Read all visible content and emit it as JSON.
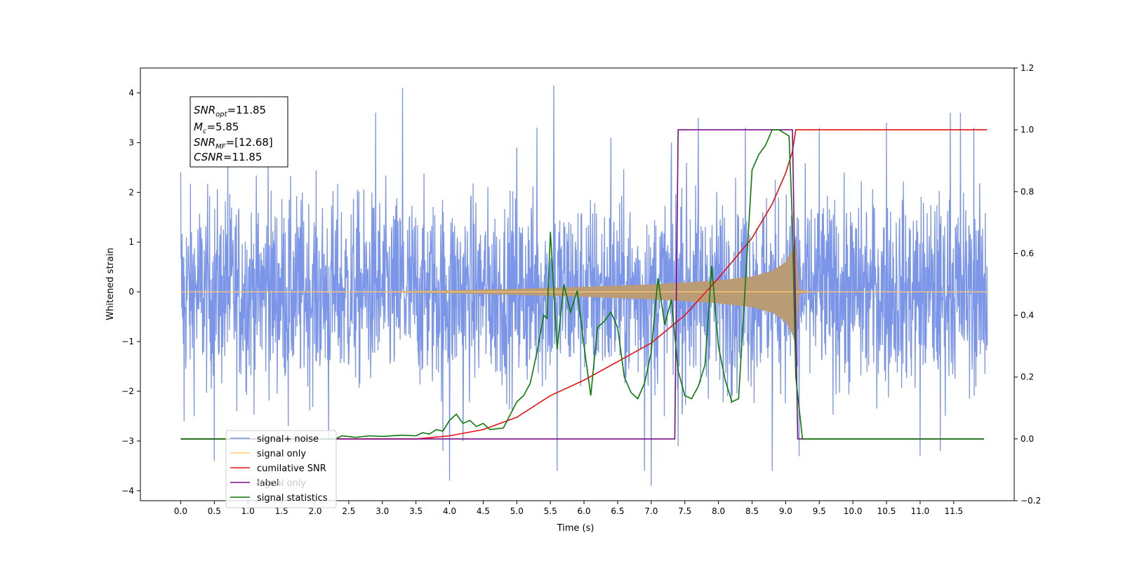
{
  "chart_data": {
    "type": "line",
    "xlabel": "Time (s)",
    "ylabel": "Whitened strain",
    "xlim": [
      -0.6,
      12.4
    ],
    "ylim": [
      -4.2,
      4.5
    ],
    "y2lim": [
      -0.2,
      1.2
    ],
    "x_ticks": [
      "0.0",
      "0.5",
      "1.0",
      "1.5",
      "2.0",
      "2.5",
      "3.0",
      "3.5",
      "4.0",
      "4.5",
      "5.0",
      "5.5",
      "6.0",
      "6.5",
      "7.0",
      "7.5",
      "8.0",
      "8.5",
      "9.0",
      "9.5",
      "10.0",
      "10.5",
      "11.0",
      "11.5"
    ],
    "y_ticks": [
      "4",
      "3",
      "2",
      "1",
      "0",
      "−1",
      "−2",
      "−3",
      "−4"
    ],
    "y2_ticks": [
      "1.2",
      "1.0",
      "0.8",
      "0.6",
      "0.4",
      "0.2",
      "0.0",
      "−0.2"
    ],
    "annotation": {
      "line1_main": "SNR",
      "line1_sub": "opt",
      "line1_value": "=11.85",
      "line2_main": "M",
      "line2_sub": "c",
      "line2_value": "=5.85",
      "line3_main": "SNR",
      "line3_sub": "MF",
      "line3_value": "=[12.68]",
      "line4_main": "CSNR",
      "line4_value": "=11.85"
    },
    "legend_position": "lower-left",
    "legend": [
      {
        "label": "signal+ noise",
        "color": "#7b95e8"
      },
      {
        "label": "signal only",
        "color": "#ffc870"
      },
      {
        "label": "cumilative SNR",
        "color": "#e81010"
      },
      {
        "label": "label",
        "color": "#7a0e8a"
      },
      {
        "label": "signal statistics",
        "color": "#0a7a0a"
      }
    ],
    "hidden_legend_text": "signal only",
    "series": [
      {
        "name": "signal+ noise",
        "axis": "left",
        "color": "#7b95e8",
        "description": "whitened noise band, mostly between -2.5 and 2.5 with spikes to about +/-4",
        "x_range": [
          0.0,
          12.0
        ],
        "noise_amplitude": 2.6,
        "spikes": [
          [
            0.0,
            2.4
          ],
          [
            0.05,
            -2.6
          ],
          [
            0.5,
            -3.4
          ],
          [
            0.7,
            2.9
          ],
          [
            1.3,
            3.0
          ],
          [
            1.6,
            -2.7
          ],
          [
            2.2,
            -3.0
          ],
          [
            2.9,
            3.6
          ],
          [
            3.3,
            4.1
          ],
          [
            3.9,
            -3.2
          ],
          [
            4.0,
            -3.8
          ],
          [
            4.2,
            -3.0
          ],
          [
            5.0,
            2.9
          ],
          [
            5.3,
            3.3
          ],
          [
            5.55,
            4.15
          ],
          [
            5.6,
            -3.6
          ],
          [
            6.4,
            3.1
          ],
          [
            6.9,
            -3.6
          ],
          [
            7.0,
            -3.9
          ],
          [
            7.3,
            3.0
          ],
          [
            7.4,
            -3.1
          ],
          [
            7.7,
            3.5
          ],
          [
            8.4,
            3.3
          ],
          [
            8.8,
            -3.6
          ],
          [
            9.2,
            -3.3
          ],
          [
            9.5,
            3.3
          ],
          [
            10.5,
            3.4
          ],
          [
            11.0,
            -3.3
          ],
          [
            11.3,
            -3.2
          ],
          [
            11.45,
            3.6
          ],
          [
            11.6,
            3.6
          ],
          [
            11.8,
            3.3
          ]
        ]
      },
      {
        "name": "signal only",
        "axis": "left",
        "color": "#ffc870",
        "description": "chirp envelope growing toward merger near 9.15 s",
        "envelope": [
          [
            0.0,
            0.0
          ],
          [
            3.0,
            0.01
          ],
          [
            4.0,
            0.03
          ],
          [
            5.0,
            0.06
          ],
          [
            6.0,
            0.1
          ],
          [
            7.0,
            0.15
          ],
          [
            8.0,
            0.23
          ],
          [
            8.5,
            0.31
          ],
          [
            8.8,
            0.42
          ],
          [
            9.0,
            0.6
          ],
          [
            9.1,
            0.85
          ],
          [
            9.15,
            1.1
          ],
          [
            9.2,
            0.05
          ],
          [
            9.4,
            0.0
          ],
          [
            12.0,
            0.0
          ]
        ]
      },
      {
        "name": "cumilative SNR",
        "axis": "right",
        "color": "#e81010",
        "points": [
          [
            0.0,
            0.0
          ],
          [
            3.5,
            0.0
          ],
          [
            4.0,
            0.01
          ],
          [
            4.5,
            0.03
          ],
          [
            5.0,
            0.07
          ],
          [
            5.5,
            0.14
          ],
          [
            6.0,
            0.19
          ],
          [
            6.5,
            0.25
          ],
          [
            7.0,
            0.31
          ],
          [
            7.5,
            0.4
          ],
          [
            8.0,
            0.52
          ],
          [
            8.5,
            0.65
          ],
          [
            8.8,
            0.76
          ],
          [
            9.0,
            0.86
          ],
          [
            9.1,
            0.93
          ],
          [
            9.15,
            1.0
          ],
          [
            12.0,
            1.0
          ]
        ]
      },
      {
        "name": "label",
        "axis": "right",
        "color": "#7a0e8a",
        "points": [
          [
            0.0,
            0.0
          ],
          [
            7.35,
            0.0
          ],
          [
            7.4,
            1.0
          ],
          [
            9.1,
            1.0
          ],
          [
            9.18,
            0.0
          ],
          [
            11.95,
            0.0
          ]
        ]
      },
      {
        "name": "signal statistics",
        "axis": "right",
        "color": "#0a7a0a",
        "points": [
          [
            0.0,
            0.0
          ],
          [
            2.3,
            0.0
          ],
          [
            2.4,
            0.01
          ],
          [
            2.6,
            0.005
          ],
          [
            2.8,
            0.01
          ],
          [
            3.0,
            0.008
          ],
          [
            3.3,
            0.012
          ],
          [
            3.5,
            0.01
          ],
          [
            3.6,
            0.02
          ],
          [
            3.7,
            0.015
          ],
          [
            3.8,
            0.03
          ],
          [
            3.9,
            0.025
          ],
          [
            4.0,
            0.06
          ],
          [
            4.1,
            0.08
          ],
          [
            4.2,
            0.05
          ],
          [
            4.3,
            0.06
          ],
          [
            4.4,
            0.04
          ],
          [
            4.5,
            0.05
          ],
          [
            4.6,
            0.03
          ],
          [
            4.8,
            0.035
          ],
          [
            5.0,
            0.12
          ],
          [
            5.1,
            0.14
          ],
          [
            5.2,
            0.18
          ],
          [
            5.3,
            0.28
          ],
          [
            5.4,
            0.4
          ],
          [
            5.45,
            0.39
          ],
          [
            5.5,
            0.67
          ],
          [
            5.6,
            0.29
          ],
          [
            5.7,
            0.5
          ],
          [
            5.8,
            0.41
          ],
          [
            5.9,
            0.48
          ],
          [
            6.0,
            0.3
          ],
          [
            6.1,
            0.14
          ],
          [
            6.2,
            0.36
          ],
          [
            6.3,
            0.38
          ],
          [
            6.4,
            0.41
          ],
          [
            6.5,
            0.36
          ],
          [
            6.6,
            0.2
          ],
          [
            6.7,
            0.15
          ],
          [
            6.8,
            0.13
          ],
          [
            6.9,
            0.18
          ],
          [
            7.0,
            0.28
          ],
          [
            7.1,
            0.52
          ],
          [
            7.2,
            0.37
          ],
          [
            7.3,
            0.45
          ],
          [
            7.4,
            0.22
          ],
          [
            7.5,
            0.14
          ],
          [
            7.6,
            0.13
          ],
          [
            7.7,
            0.17
          ],
          [
            7.8,
            0.24
          ],
          [
            7.9,
            0.56
          ],
          [
            8.0,
            0.3
          ],
          [
            8.1,
            0.19
          ],
          [
            8.2,
            0.12
          ],
          [
            8.3,
            0.13
          ],
          [
            8.4,
            0.5
          ],
          [
            8.5,
            0.87
          ],
          [
            8.6,
            0.92
          ],
          [
            8.7,
            0.95
          ],
          [
            8.8,
            1.0
          ],
          [
            8.9,
            1.0
          ],
          [
            9.05,
            0.98
          ],
          [
            9.1,
            0.7
          ],
          [
            9.15,
            0.2
          ],
          [
            9.25,
            0.0
          ],
          [
            11.95,
            0.0
          ]
        ]
      }
    ]
  }
}
